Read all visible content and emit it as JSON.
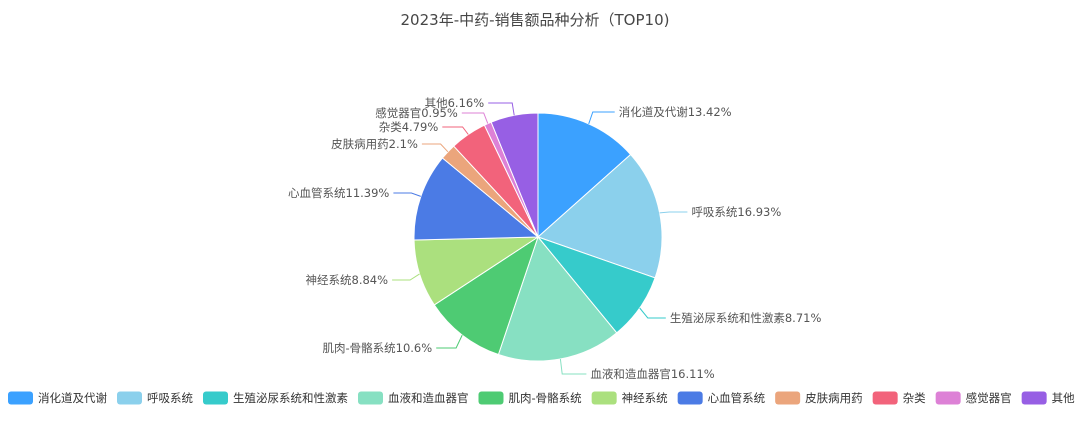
{
  "chart_data": {
    "type": "pie",
    "title": "2023年-中药-销售额品种分析（TOP10)",
    "legend_position": "bottom",
    "slices": [
      {
        "name": "消化道及代谢",
        "value": 13.42,
        "label": "消化道及代谢13.42%",
        "color": "#3ba1ff"
      },
      {
        "name": "呼吸系统",
        "value": 16.93,
        "label": "呼吸系统16.93%",
        "color": "#8bd0ec"
      },
      {
        "name": "生殖泌尿系统和性激素",
        "value": 8.71,
        "label": "生殖泌尿系统和性激素8.71%",
        "color": "#36cbcb"
      },
      {
        "name": "血液和造血器官",
        "value": 16.11,
        "label": "血液和造血器官16.11%",
        "color": "#87e0c2"
      },
      {
        "name": "肌肉-骨骼系统",
        "value": 10.6,
        "label": "肌肉-骨骼系统10.6%",
        "color": "#4ecb73"
      },
      {
        "name": "神经系统",
        "value": 8.84,
        "label": "神经系统8.84%",
        "color": "#abe07e"
      },
      {
        "name": "心血管系统",
        "value": 11.39,
        "label": "心血管系统11.39%",
        "color": "#4b7be5"
      },
      {
        "name": "皮肤病用药",
        "value": 2.1,
        "label": "皮肤病用药2.1%",
        "color": "#eba57c"
      },
      {
        "name": "杂类",
        "value": 4.79,
        "label": "杂类4.79%",
        "color": "#f2637b"
      },
      {
        "name": "感觉器官",
        "value": 0.95,
        "label": "感觉器官0.95%",
        "color": "#dd81d6"
      },
      {
        "name": "其他",
        "value": 6.16,
        "label": "其他6.16%",
        "color": "#975fe4"
      }
    ]
  }
}
